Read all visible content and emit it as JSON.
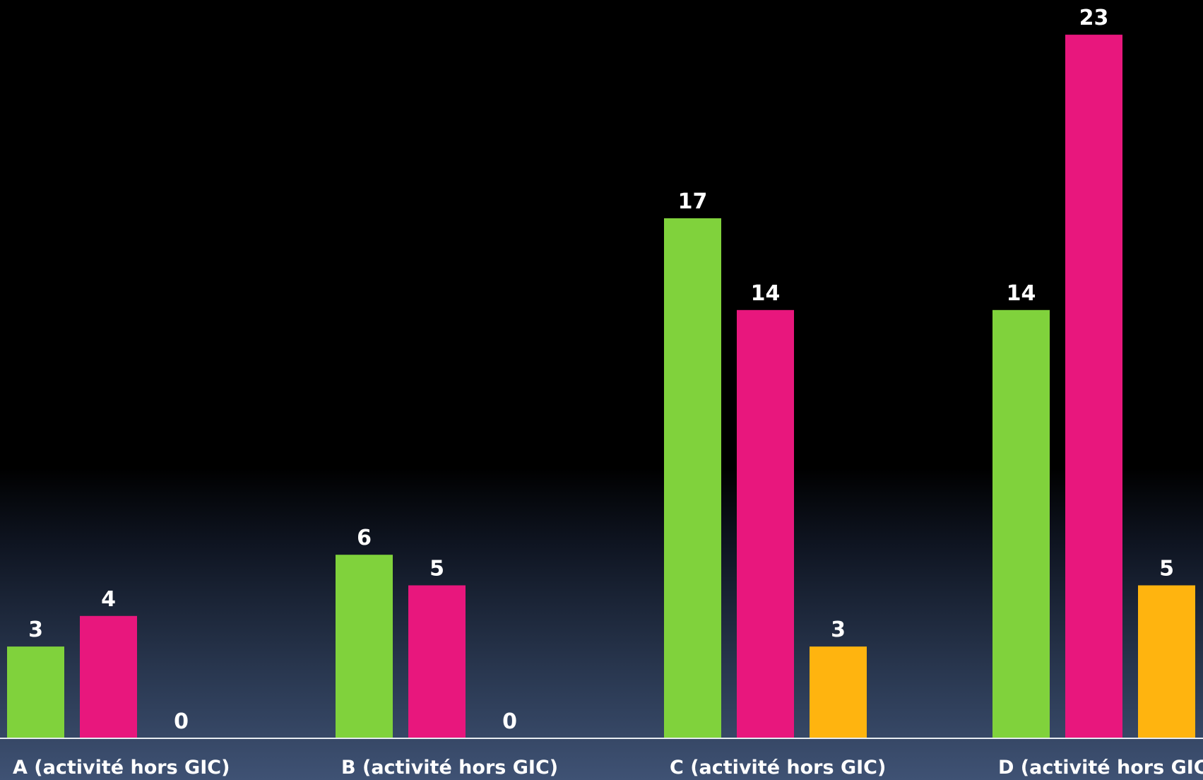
{
  "chart_data": {
    "type": "bar",
    "categories": [
      "A (activité hors GIC)",
      "B (activité hors GIC)",
      "C (activité hors GIC)",
      "D (activité hors GIC)"
    ],
    "series": [
      {
        "values": [
          3,
          6,
          17,
          14
        ],
        "color": "#80d23c"
      },
      {
        "values": [
          4,
          5,
          14,
          23
        ],
        "color": "#e8177d"
      },
      {
        "values": [
          0,
          0,
          3,
          5
        ],
        "color": "#ffb40f"
      }
    ],
    "ylim": [
      0,
      23
    ],
    "grid": false,
    "data_labels": true,
    "title": "",
    "xlabel": "",
    "ylabel": ""
  }
}
